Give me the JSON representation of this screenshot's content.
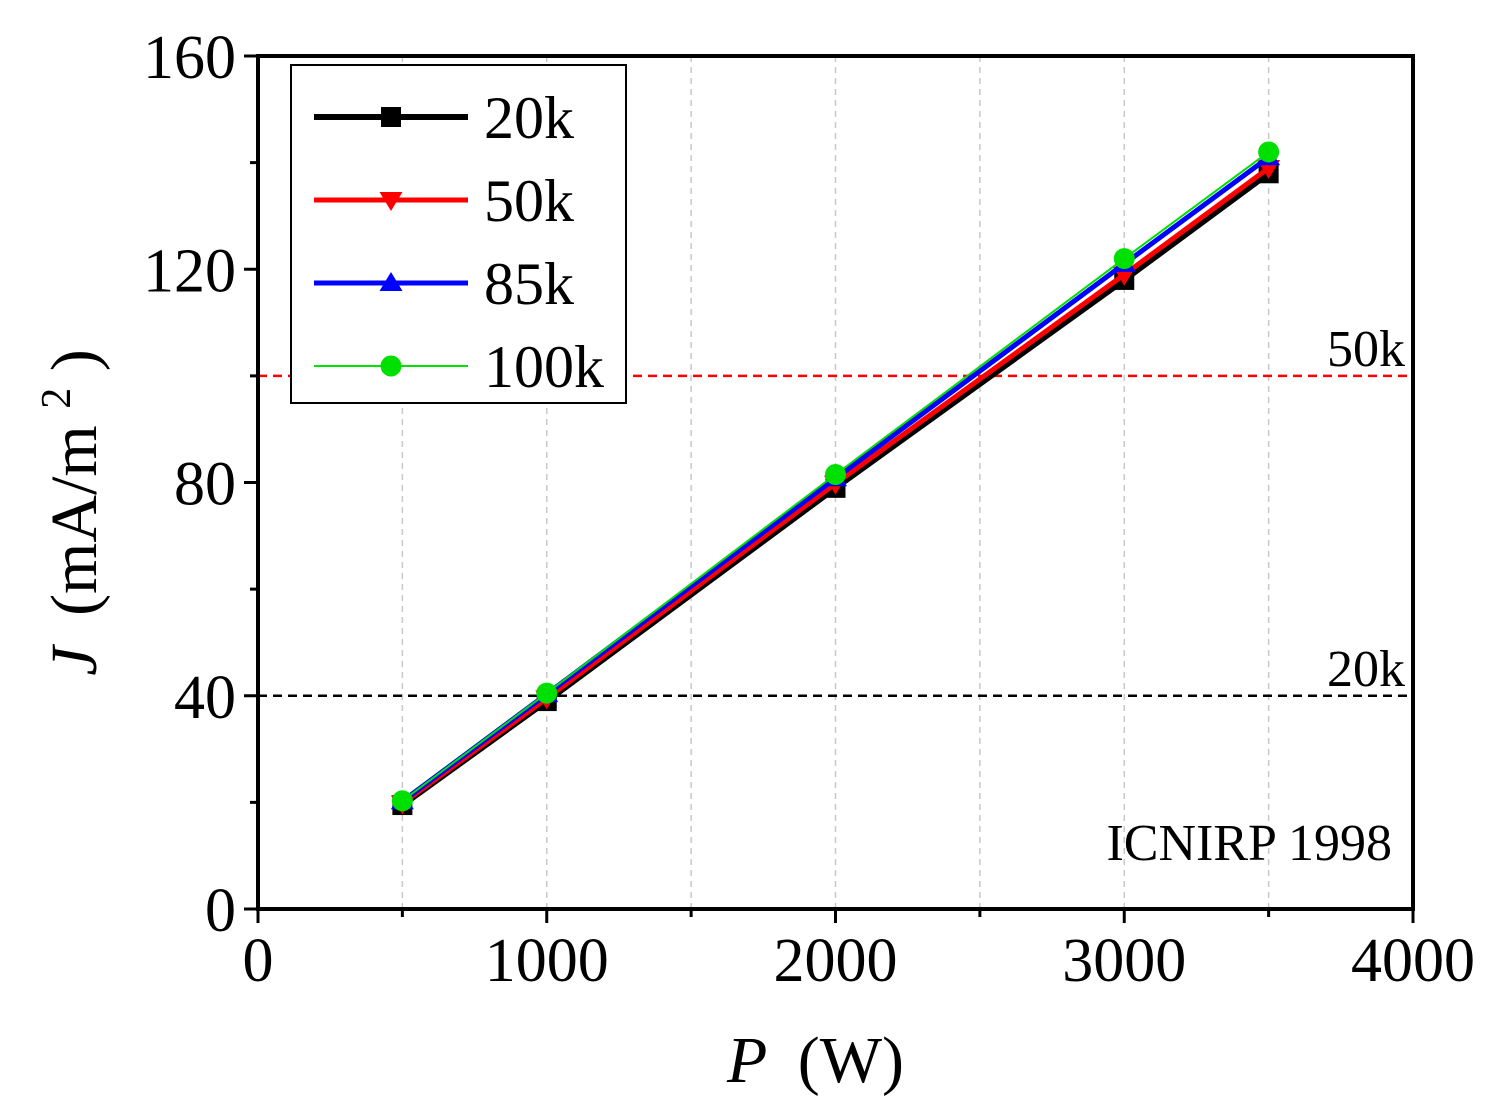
{
  "chart_data": {
    "type": "line",
    "title": "",
    "xlabel": {
      "symbol": "P",
      "unit": "(W)"
    },
    "ylabel": {
      "symbol": "J",
      "unit_main": "(mA/m",
      "unit_sup": "2",
      "unit_end": ")"
    },
    "xlim": [
      0,
      4000
    ],
    "ylim": [
      0,
      160
    ],
    "xticks": [
      0,
      1000,
      2000,
      3000,
      4000
    ],
    "yticks": [
      0,
      40,
      80,
      120,
      160
    ],
    "x_tick_labels": [
      "0",
      "1000",
      "2000",
      "3000",
      "4000"
    ],
    "y_tick_labels": [
      "0",
      "40",
      "80",
      "120",
      "160"
    ],
    "x_minor_step": 500,
    "y_minor_step": 20,
    "grid": "vertical dashed at 500 intervals",
    "legend_position": "top-left",
    "series": [
      {
        "name": "20k",
        "color": "#000000",
        "marker": "square",
        "x": [
          500,
          1000,
          2000,
          3000,
          3500
        ],
        "y": [
          19.5,
          39,
          79,
          118,
          138
        ]
      },
      {
        "name": "50k",
        "color": "#ff0000",
        "marker": "triangle-down",
        "x": [
          500,
          1000,
          2000,
          3000,
          3500
        ],
        "y": [
          19.8,
          39.5,
          79.8,
          119,
          139
        ]
      },
      {
        "name": "85k",
        "color": "#0000ff",
        "marker": "triangle-up",
        "x": [
          500,
          1000,
          2000,
          3000,
          3500
        ],
        "y": [
          20.2,
          40.3,
          80.8,
          121,
          141
        ]
      },
      {
        "name": "100k",
        "color": "#00e000",
        "marker": "circle",
        "x": [
          500,
          1000,
          2000,
          3000,
          3500
        ],
        "y": [
          20.3,
          40.5,
          81.5,
          122,
          142
        ]
      }
    ],
    "reference_lines": [
      {
        "label": "50k",
        "y": 100,
        "color": "#ff0000"
      },
      {
        "label": "20k",
        "y": 40,
        "color": "#000000"
      }
    ],
    "annotation": "ICNIRP 1998"
  }
}
